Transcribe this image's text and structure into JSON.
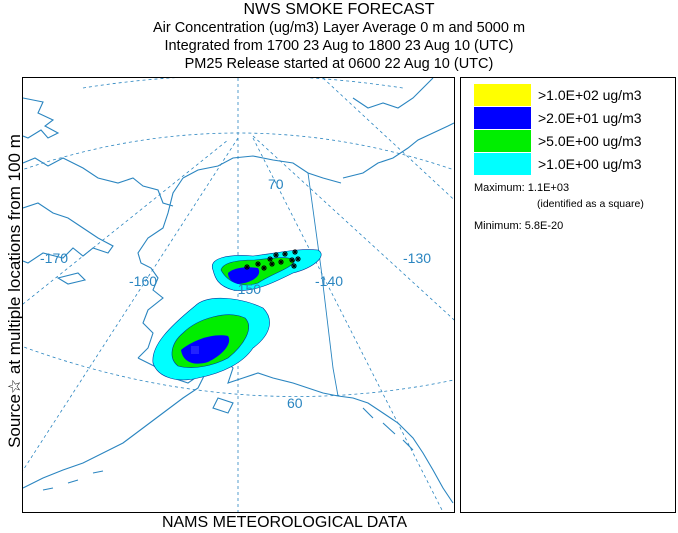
{
  "titles": {
    "line1": "NWS SMOKE FORECAST",
    "line2": "Air Concentration (ug/m3) Layer Average    0 m and  5000 m",
    "line3": "Integrated from 1700 23 Aug to 1800 23 Aug 10 (UTC)",
    "line4": "PM25 Release started at 0600 22 Aug 10 (UTC)"
  },
  "side_label": "Source☆  at multiple locations  from   100 m",
  "bottom_label": "NAMS METEOROLOGICAL DATA",
  "map": {
    "lon_labels": [
      "-170",
      "-160",
      "-150",
      "-140",
      "-130"
    ],
    "lat_labels": [
      "70",
      "60"
    ],
    "colors": {
      "coast": "#2a85c0",
      "grid": "#2a85c0"
    }
  },
  "legend": {
    "items": [
      {
        "label": ">1.0E+02 ug/m3",
        "color": "#ffff00"
      },
      {
        "label": ">2.0E+01 ug/m3",
        "color": "#0000ff"
      },
      {
        "label": ">5.0E+00 ug/m3",
        "color": "#00ee00"
      },
      {
        "label": ">1.0E+00 ug/m3",
        "color": "#00ffff"
      }
    ],
    "maximum_label": "Maximum: 1.1E+03",
    "maximum_note": "(identified as a square)",
    "minimum_label": "Minimum: 5.8E-20"
  }
}
